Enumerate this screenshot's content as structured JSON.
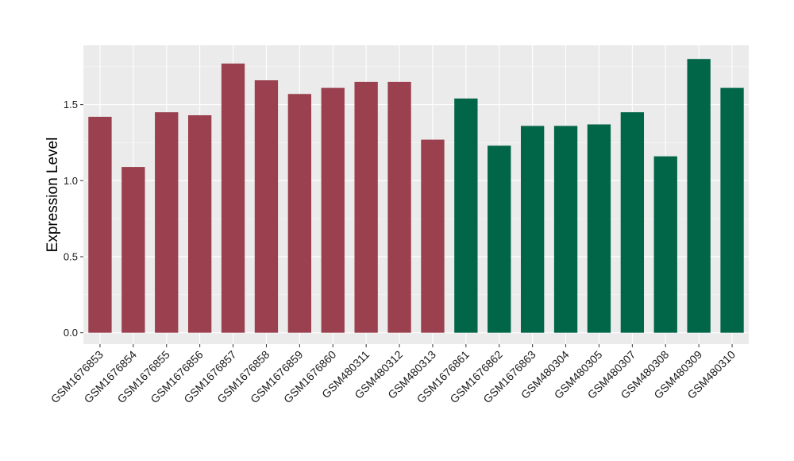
{
  "chart_data": {
    "type": "bar",
    "title": "",
    "xlabel": "",
    "ylabel": "Expression Level",
    "ylim": [
      -0.075,
      1.89
    ],
    "yticks": [
      0.0,
      0.5,
      1.0,
      1.5
    ],
    "ytick_labels": [
      "0.0",
      "0.5",
      "1.0",
      "1.5"
    ],
    "grid": true,
    "legend": "none",
    "categories": [
      "GSM1676853",
      "GSM1676854",
      "GSM1676855",
      "GSM1676856",
      "GSM1676857",
      "GSM1676858",
      "GSM1676859",
      "GSM1676860",
      "GSM480311",
      "GSM480312",
      "GSM480313",
      "GSM1676861",
      "GSM1676862",
      "GSM1676863",
      "GSM480304",
      "GSM480305",
      "GSM480307",
      "GSM480308",
      "GSM480309",
      "GSM480310"
    ],
    "values": [
      1.42,
      1.09,
      1.45,
      1.43,
      1.77,
      1.66,
      1.57,
      1.61,
      1.65,
      1.65,
      1.27,
      1.54,
      1.23,
      1.36,
      1.36,
      1.37,
      1.45,
      1.16,
      1.8,
      1.61
    ],
    "group_colors": [
      "#9a404e",
      "#9a404e",
      "#9a404e",
      "#9a404e",
      "#9a404e",
      "#9a404e",
      "#9a404e",
      "#9a404e",
      "#9a404e",
      "#9a404e",
      "#9a404e",
      "#006647",
      "#006647",
      "#006647",
      "#006647",
      "#006647",
      "#006647",
      "#006647",
      "#006647",
      "#006647"
    ],
    "panel_color": "#ebebeb",
    "grid_color": "#ffffff"
  }
}
